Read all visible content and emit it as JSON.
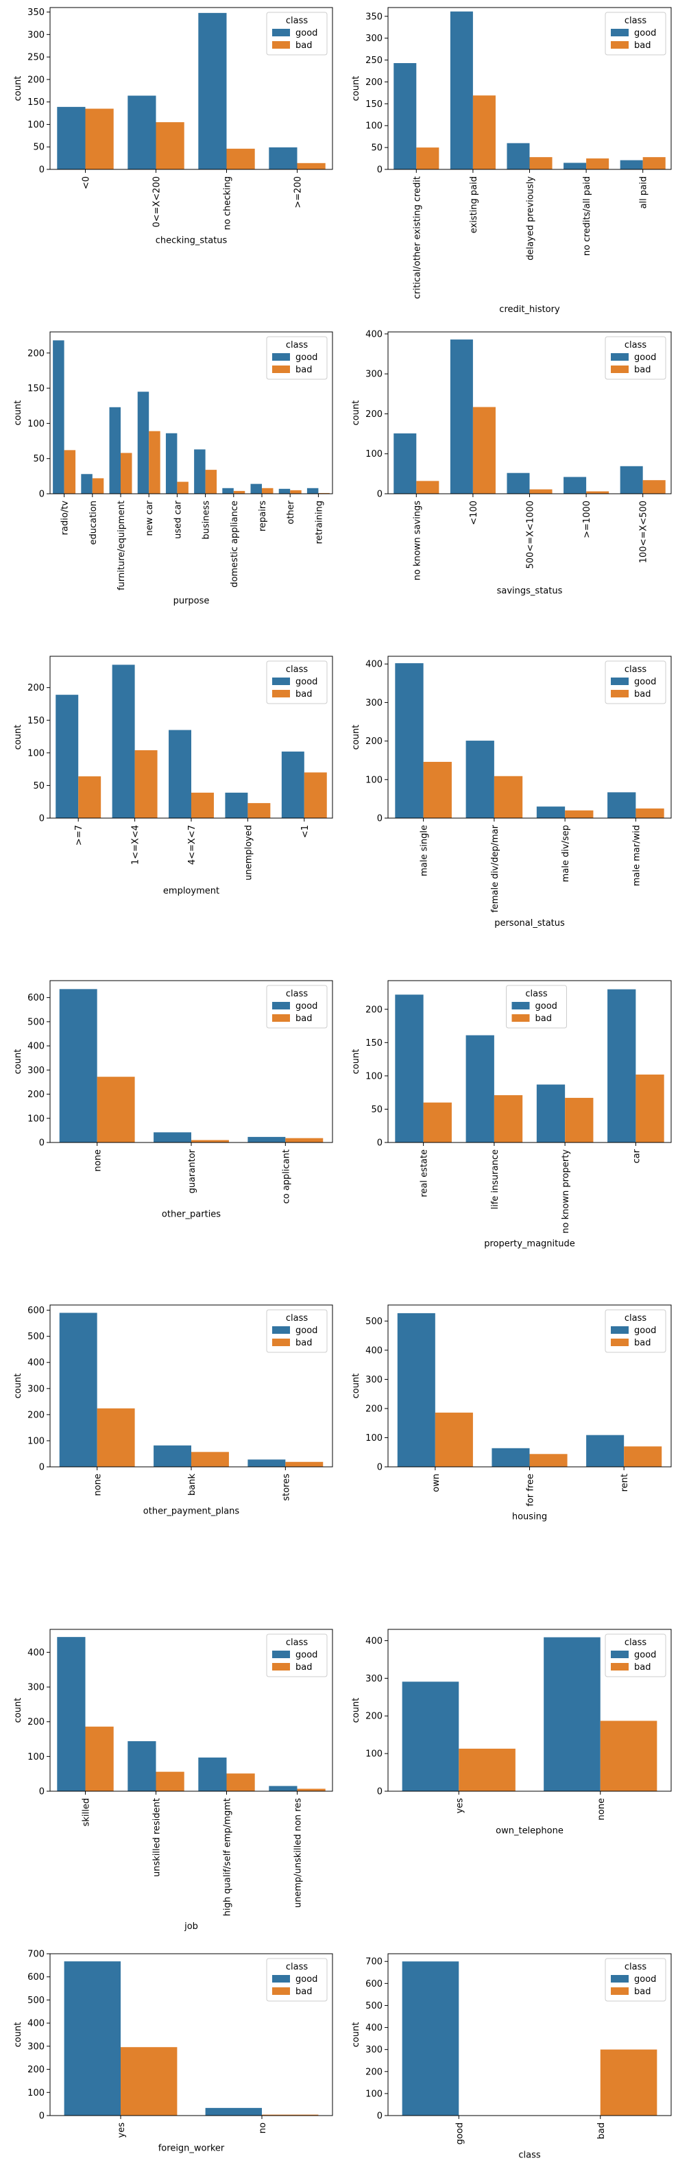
{
  "figure": {
    "colors": {
      "good": "#3274a1",
      "bad": "#e1812c"
    }
  },
  "chart_data": [
    {
      "type": "bar",
      "xlabel": "checking_status",
      "ylabel": "count",
      "legend_title": "class",
      "legend_position": "top-right",
      "categories": [
        "<0",
        "0<=X<200",
        "no checking",
        ">=200"
      ],
      "ylim": [
        0,
        360
      ],
      "yticks": [
        0,
        50,
        100,
        150,
        200,
        250,
        300,
        350
      ],
      "series": [
        {
          "name": "good",
          "values": [
            139,
            164,
            348,
            49
          ]
        },
        {
          "name": "bad",
          "values": [
            135,
            105,
            46,
            14
          ]
        }
      ]
    },
    {
      "type": "bar",
      "xlabel": "credit_history",
      "ylabel": "count",
      "legend_title": "class",
      "legend_position": "top-right",
      "categories": [
        "critical/other existing credit",
        "existing paid",
        "delayed previously",
        "no credits/all paid",
        "all paid"
      ],
      "ylim": [
        0,
        370
      ],
      "yticks": [
        0,
        50,
        100,
        150,
        200,
        250,
        300,
        350
      ],
      "series": [
        {
          "name": "good",
          "values": [
            243,
            361,
            60,
            15,
            21
          ]
        },
        {
          "name": "bad",
          "values": [
            50,
            169,
            28,
            25,
            28
          ]
        }
      ]
    },
    {
      "type": "bar",
      "xlabel": "purpose",
      "ylabel": "count",
      "legend_title": "class",
      "legend_position": "top-right",
      "categories": [
        "radio/tv",
        "education",
        "furniture/equipment",
        "new car",
        "used car",
        "business",
        "domestic appliance",
        "repairs",
        "other",
        "retraining"
      ],
      "ylim": [
        0,
        230
      ],
      "yticks": [
        0,
        50,
        100,
        150,
        200
      ],
      "series": [
        {
          "name": "good",
          "values": [
            218,
            28,
            123,
            145,
            86,
            63,
            8,
            14,
            7,
            8
          ]
        },
        {
          "name": "bad",
          "values": [
            62,
            22,
            58,
            89,
            17,
            34,
            4,
            8,
            5,
            1
          ]
        }
      ]
    },
    {
      "type": "bar",
      "xlabel": "savings_status",
      "ylabel": "count",
      "legend_title": "class",
      "legend_position": "top-right",
      "categories": [
        "no known savings",
        "<100",
        "500<=X<1000",
        ">=1000",
        "100<=X<500"
      ],
      "ylim": [
        0,
        405
      ],
      "yticks": [
        0,
        100,
        200,
        300,
        400
      ],
      "series": [
        {
          "name": "good",
          "values": [
            151,
            386,
            52,
            42,
            69
          ]
        },
        {
          "name": "bad",
          "values": [
            32,
            217,
            11,
            6,
            34
          ]
        }
      ]
    },
    {
      "type": "bar",
      "xlabel": "employment",
      "ylabel": "count",
      "legend_title": "class",
      "legend_position": "top-right",
      "categories": [
        ">=7",
        "1<=X<4",
        "4<=X<7",
        "unemployed",
        "<1"
      ],
      "ylim": [
        0,
        248
      ],
      "yticks": [
        0,
        50,
        100,
        150,
        200
      ],
      "series": [
        {
          "name": "good",
          "values": [
            189,
            235,
            135,
            39,
            102
          ]
        },
        {
          "name": "bad",
          "values": [
            64,
            104,
            39,
            23,
            70
          ]
        }
      ]
    },
    {
      "type": "bar",
      "xlabel": "personal_status",
      "ylabel": "count",
      "legend_title": "class",
      "legend_position": "top-right",
      "categories": [
        "male single",
        "female div/dep/mar",
        "male div/sep",
        "male mar/wid"
      ],
      "ylim": [
        0,
        420
      ],
      "yticks": [
        0,
        100,
        200,
        300,
        400
      ],
      "series": [
        {
          "name": "good",
          "values": [
            402,
            201,
            30,
            67
          ]
        },
        {
          "name": "bad",
          "values": [
            146,
            109,
            20,
            25
          ]
        }
      ]
    },
    {
      "type": "bar",
      "xlabel": "other_parties",
      "ylabel": "count",
      "legend_title": "class",
      "legend_position": "top-right",
      "categories": [
        "none",
        "guarantor",
        "co applicant"
      ],
      "ylim": [
        0,
        670
      ],
      "yticks": [
        0,
        100,
        200,
        300,
        400,
        500,
        600
      ],
      "series": [
        {
          "name": "good",
          "values": [
            635,
            42,
            23
          ]
        },
        {
          "name": "bad",
          "values": [
            272,
            10,
            18
          ]
        }
      ]
    },
    {
      "type": "bar",
      "xlabel": "property_magnitude",
      "ylabel": "count",
      "legend_title": "class",
      "legend_position": "top-center",
      "categories": [
        "real estate",
        "life insurance",
        "no known property",
        "car"
      ],
      "ylim": [
        0,
        243
      ],
      "yticks": [
        0,
        50,
        100,
        150,
        200
      ],
      "series": [
        {
          "name": "good",
          "values": [
            222,
            161,
            87,
            230
          ]
        },
        {
          "name": "bad",
          "values": [
            60,
            71,
            67,
            102
          ]
        }
      ]
    },
    {
      "type": "bar",
      "xlabel": "other_payment_plans",
      "ylabel": "count",
      "legend_title": "class",
      "legend_position": "top-right",
      "categories": [
        "none",
        "bank",
        "stores"
      ],
      "ylim": [
        0,
        620
      ],
      "yticks": [
        0,
        100,
        200,
        300,
        400,
        500,
        600
      ],
      "series": [
        {
          "name": "good",
          "values": [
            590,
            82,
            28
          ]
        },
        {
          "name": "bad",
          "values": [
            224,
            57,
            19
          ]
        }
      ]
    },
    {
      "type": "bar",
      "xlabel": "housing",
      "ylabel": "count",
      "legend_title": "class",
      "legend_position": "top-right",
      "categories": [
        "own",
        "for free",
        "rent"
      ],
      "ylim": [
        0,
        555
      ],
      "yticks": [
        0,
        100,
        200,
        300,
        400,
        500
      ],
      "series": [
        {
          "name": "good",
          "values": [
            527,
            64,
            109
          ]
        },
        {
          "name": "bad",
          "values": [
            186,
            44,
            70
          ]
        }
      ]
    },
    {
      "type": "bar",
      "xlabel": "job",
      "ylabel": "count",
      "legend_title": "class",
      "legend_position": "top-right",
      "categories": [
        "skilled",
        "unskilled resident",
        "high qualif/self emp/mgmt",
        "unemp/unskilled non res"
      ],
      "ylim": [
        0,
        466
      ],
      "yticks": [
        0,
        100,
        200,
        300,
        400
      ],
      "series": [
        {
          "name": "good",
          "values": [
            444,
            144,
            97,
            15
          ]
        },
        {
          "name": "bad",
          "values": [
            186,
            56,
            51,
            7
          ]
        }
      ]
    },
    {
      "type": "bar",
      "xlabel": "own_telephone",
      "ylabel": "count",
      "legend_title": "class",
      "legend_position": "top-right",
      "categories": [
        "yes",
        "none"
      ],
      "ylim": [
        0,
        430
      ],
      "yticks": [
        0,
        100,
        200,
        300,
        400
      ],
      "series": [
        {
          "name": "good",
          "values": [
            291,
            409
          ]
        },
        {
          "name": "bad",
          "values": [
            113,
            187
          ]
        }
      ]
    },
    {
      "type": "bar",
      "xlabel": "foreign_worker",
      "ylabel": "count",
      "legend_title": "class",
      "legend_position": "top-right",
      "categories": [
        "yes",
        "no"
      ],
      "ylim": [
        0,
        700
      ],
      "yticks": [
        0,
        100,
        200,
        300,
        400,
        500,
        600,
        700
      ],
      "series": [
        {
          "name": "good",
          "values": [
            667,
            33
          ]
        },
        {
          "name": "bad",
          "values": [
            296,
            4
          ]
        }
      ]
    },
    {
      "type": "bar",
      "xlabel": "class",
      "ylabel": "count",
      "legend_title": "class",
      "legend_position": "top-right",
      "categories": [
        "good",
        "bad"
      ],
      "ylim": [
        0,
        735
      ],
      "yticks": [
        0,
        100,
        200,
        300,
        400,
        500,
        600,
        700
      ],
      "series": [
        {
          "name": "good",
          "values": [
            700,
            0
          ]
        },
        {
          "name": "bad",
          "values": [
            0,
            300
          ]
        }
      ]
    }
  ]
}
